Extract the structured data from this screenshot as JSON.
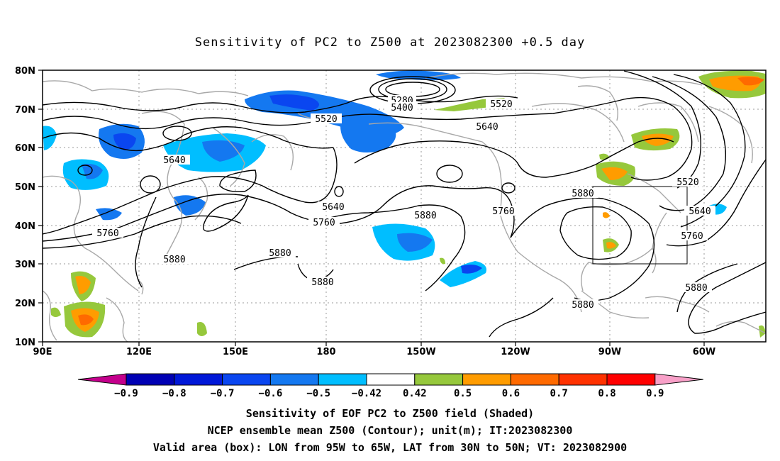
{
  "title": "Sensitivity of PC2 to Z500 at 2023082300 +0.5 day",
  "map": {
    "lat_labels": [
      "80N",
      "70N",
      "60N",
      "50N",
      "40N",
      "30N",
      "20N",
      "10N"
    ],
    "lon_labels": [
      "90E",
      "120E",
      "150E",
      "180",
      "150W",
      "120W",
      "90W",
      "60W"
    ],
    "contour_labels": [
      "5280",
      "5400",
      "5520",
      "5520",
      "5520",
      "5640",
      "5640",
      "5640",
      "5640",
      "5760",
      "5760",
      "5760",
      "5760",
      "5880",
      "5880",
      "5880",
      "5880",
      "5880",
      "5880",
      "5880"
    ],
    "box": {
      "lon_range": "95W to 65W",
      "lat_range": "30N to 50N"
    }
  },
  "colorbar": {
    "labels": [
      "-0.9",
      "-0.8",
      "-0.7",
      "-0.6",
      "-0.5",
      "-0.42",
      "0.42",
      "0.5",
      "0.6",
      "0.7",
      "0.8",
      "0.9"
    ],
    "colors": [
      "#c4008c",
      "#0000b4",
      "#0018d8",
      "#0a46f0",
      "#1478f0",
      "#00beff",
      "#ffffff",
      "#96c83c",
      "#ff9c00",
      "#ff6a00",
      "#ff3200",
      "#ff0000",
      "#f8a0c8"
    ]
  },
  "captions": {
    "line1": "Sensitivity of EOF PC2 to Z500 field (Shaded)",
    "line2": "NCEP ensemble mean Z500 (Contour); unit(m); IT:2023082300",
    "line3": "Valid area (box): LON from 95W to 65W, LAT from 30N to 50N; VT: 2023082900"
  }
}
